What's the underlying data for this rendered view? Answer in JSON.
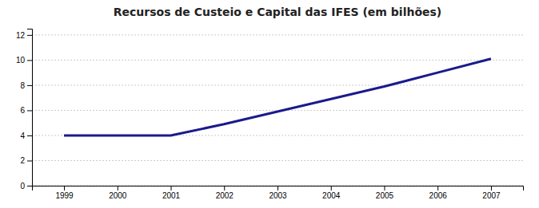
{
  "chart_data": {
    "type": "line",
    "title": "Recursos de Custeio e Capital das IFES (em bilhões)",
    "x": [
      1999,
      2000,
      2001,
      2002,
      2003,
      2004,
      2005,
      2006,
      2007
    ],
    "values": [
      4,
      4,
      4,
      4.9,
      5.9,
      6.9,
      7.9,
      9.0,
      10.1
    ],
    "color": "#1a1a8c",
    "xlim": [
      1998.4,
      2007.6
    ],
    "ylim": [
      0,
      12.5
    ],
    "xticks": [
      1999,
      2000,
      2001,
      2002,
      2003,
      2004,
      2005,
      2006,
      2007
    ],
    "yticks": [
      0,
      2,
      4,
      6,
      8,
      10,
      12
    ],
    "grid": true
  }
}
